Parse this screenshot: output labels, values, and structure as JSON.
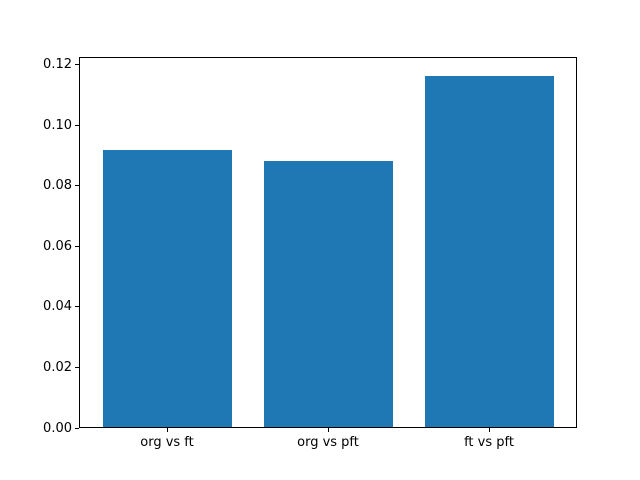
{
  "chart_data": {
    "type": "bar",
    "title": "",
    "xlabel": "",
    "ylabel": "",
    "categories": [
      "org vs ft",
      "org vs pft",
      "ft vs pft"
    ],
    "values": [
      0.0915,
      0.0878,
      0.116
    ],
    "x_positions": [
      0,
      1,
      2
    ],
    "bar_rel_width": 0.8,
    "xlim": [
      -0.54,
      2.54
    ],
    "ylim": [
      0,
      0.1218
    ],
    "yticks": [
      0,
      0.02,
      0.04,
      0.06,
      0.08,
      0.1,
      0.12
    ],
    "ytick_labels": [
      "0.00",
      "0.02",
      "0.04",
      "0.06",
      "0.08",
      "0.10",
      "0.12"
    ],
    "bar_color": "#1f77b4",
    "background_color": "#ffffff",
    "spine_color": "#000000",
    "tick_color": "#000000",
    "text_color": "#000000",
    "grid": false,
    "legend": false
  }
}
